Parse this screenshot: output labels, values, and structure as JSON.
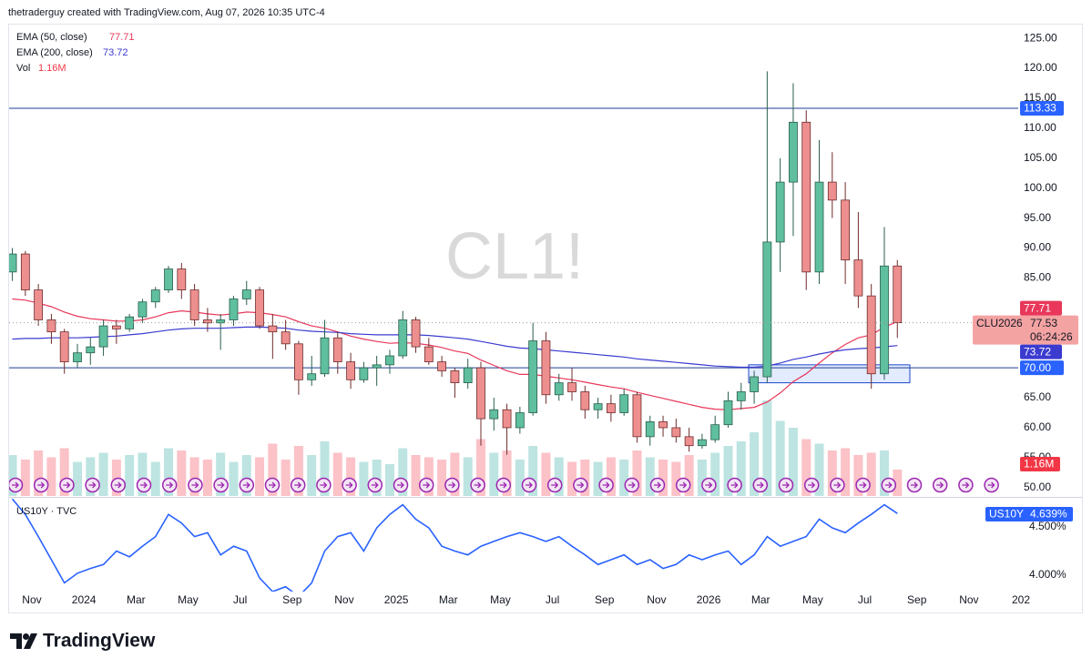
{
  "header": {
    "credit": "thetraderguy created with TradingView.com, Aug 07, 2026 10:35 UTC-4"
  },
  "footer": {
    "brand": "TradingView"
  },
  "chart_data": [
    {
      "type": "candlestick",
      "watermark": "CL1!",
      "symbol": "CLU2026",
      "countdown": "06:24:26",
      "categories": [
        null,
        null,
        "Nov",
        null,
        null,
        null,
        "2024",
        null,
        null,
        null,
        "Mar",
        null,
        null,
        null,
        "May",
        null,
        null,
        null,
        "Jul",
        null,
        null,
        null,
        "Sep",
        null,
        null,
        null,
        "Nov",
        null,
        null,
        null,
        "2025",
        null,
        null,
        null,
        "Mar",
        null,
        null,
        null,
        "May",
        null,
        null,
        null,
        "Jul",
        null,
        null,
        null,
        "Sep",
        null,
        null,
        null,
        "Nov",
        null,
        null,
        null,
        "2026",
        null,
        null,
        null,
        "Mar",
        null,
        null,
        null,
        "May",
        null,
        null,
        null,
        "Jul",
        null,
        null,
        null,
        "Sep",
        null,
        null,
        null,
        "Nov",
        null,
        null,
        null,
        "202"
      ],
      "open": [
        86,
        89,
        83,
        78,
        76,
        71,
        72.5,
        73.5,
        77,
        76.5,
        78.5,
        81,
        83,
        86.5,
        83,
        78,
        77.5,
        78,
        81.5,
        83,
        77,
        76,
        74,
        68,
        69,
        75,
        71,
        68,
        70,
        70.5,
        72,
        78,
        73.5,
        71,
        69.5,
        67.5,
        70,
        61.5,
        63,
        60,
        62.5,
        74.5,
        65.5,
        67.5,
        66,
        63,
        64,
        62.5,
        65.5,
        58.5,
        61,
        60,
        58.5,
        57,
        58,
        60.5,
        64.5,
        66,
        68.5,
        91,
        101,
        111,
        86,
        101,
        98,
        88,
        82,
        69,
        87,
        null,
        null,
        null,
        null,
        null,
        null,
        null,
        null,
        null,
        null
      ],
      "high": [
        90,
        89.5,
        84,
        79,
        76.5,
        74,
        75,
        78,
        78,
        79,
        81.5,
        83.5,
        87,
        87.5,
        84,
        80,
        79,
        82,
        84.5,
        83.5,
        79,
        78,
        74.5,
        72,
        78,
        76,
        72.5,
        71,
        72,
        73,
        79.5,
        78.5,
        75,
        72,
        70,
        71.5,
        71,
        65,
        64,
        63.5,
        77.5,
        76,
        69,
        70,
        67,
        65,
        65.5,
        66.5,
        66,
        62,
        62,
        61.5,
        60,
        59,
        62,
        66,
        67.5,
        69.5,
        119.5,
        105,
        117.5,
        113,
        108,
        106,
        101,
        96,
        84,
        93.5,
        88,
        null,
        null,
        null,
        null,
        null,
        null,
        null,
        null,
        null,
        null
      ],
      "low": [
        84.5,
        82,
        77,
        74,
        69,
        70,
        70.5,
        72,
        74,
        76,
        77.5,
        80,
        82.5,
        81.5,
        77,
        76,
        73,
        77,
        80.5,
        76.5,
        71.5,
        73,
        65.5,
        67,
        68.5,
        69,
        66.5,
        67.5,
        67,
        69,
        71.5,
        72.5,
        70.5,
        68.5,
        65,
        66.5,
        57,
        59.5,
        55.5,
        59,
        62,
        64,
        64.5,
        64.5,
        61.5,
        61.5,
        61,
        62,
        57.5,
        57,
        58.5,
        57.5,
        56,
        56.5,
        57.5,
        60,
        63,
        64,
        67.5,
        86,
        92,
        83,
        84,
        95,
        84,
        80,
        66.5,
        68,
        75,
        null,
        null,
        null,
        null,
        null,
        null,
        null,
        null,
        null,
        null
      ],
      "close": [
        89,
        83,
        78,
        76,
        71,
        72.5,
        73.5,
        77,
        76.5,
        78.5,
        81,
        83,
        86.5,
        83,
        78,
        77.5,
        78,
        81.5,
        83,
        77,
        76,
        74,
        68,
        69,
        75,
        71,
        68,
        70,
        70.5,
        72,
        78,
        73.5,
        71,
        69.5,
        67.5,
        70,
        61.5,
        63,
        60,
        62.5,
        74.5,
        65.5,
        67.5,
        66,
        63,
        64,
        62.5,
        65.5,
        58.5,
        61,
        60,
        58.5,
        57,
        58,
        60.5,
        64.5,
        66,
        68.5,
        91,
        101,
        111,
        86,
        101,
        98,
        88,
        82,
        69,
        87,
        77.53,
        null,
        null,
        null,
        null,
        null,
        null,
        null,
        null,
        null,
        null
      ],
      "up_color": "#5fbf9f",
      "down_color": "#ee8f8f",
      "volume": {
        "name": "Vol",
        "color": "#f23645",
        "values": [
          1.8,
          1.6,
          2.0,
          1.7,
          2.1,
          1.5,
          1.7,
          1.9,
          1.6,
          1.8,
          1.9,
          1.5,
          2.1,
          2.0,
          1.7,
          1.6,
          1.9,
          1.5,
          1.8,
          1.7,
          2.3,
          1.6,
          2.2,
          1.8,
          2.4,
          1.9,
          1.7,
          1.5,
          1.6,
          1.4,
          2.1,
          1.8,
          1.7,
          1.6,
          1.9,
          1.7,
          2.5,
          1.9,
          2.0,
          1.6,
          2.2,
          1.9,
          1.7,
          1.5,
          1.6,
          1.5,
          1.7,
          1.6,
          2.0,
          1.7,
          1.6,
          1.5,
          1.8,
          1.6,
          1.9,
          2.2,
          2.4,
          2.8,
          4.2,
          3.3,
          3.0,
          2.5,
          2.3,
          2.0,
          2.1,
          1.8,
          1.9,
          2.0,
          1.16,
          null,
          null,
          null,
          null,
          null,
          null,
          null,
          null,
          null,
          null
        ],
        "value_labels": [
          null,
          null,
          null,
          null,
          null,
          null,
          null,
          null,
          null,
          null,
          null,
          null,
          null,
          null,
          null,
          null,
          null,
          null,
          null,
          null,
          null,
          null,
          null,
          null,
          null,
          null,
          null,
          null,
          null,
          null,
          null,
          null,
          null,
          null,
          null,
          null,
          null,
          null,
          null,
          null,
          null,
          null,
          null,
          null,
          null,
          null,
          null,
          null,
          null,
          null,
          null,
          null,
          null,
          null,
          null,
          null,
          null,
          null,
          null,
          null,
          null,
          null,
          null,
          null,
          null,
          null,
          null,
          null,
          "1.16M",
          null,
          null,
          null,
          null,
          null,
          null,
          null,
          null,
          null,
          null
        ]
      },
      "series": [
        {
          "name": "EMA (50, close)",
          "color": "#e8375a",
          "values": [
            81.5,
            81.3,
            80.8,
            80.2,
            79.3,
            78.6,
            78.2,
            78,
            77.8,
            77.8,
            78,
            78.5,
            79.2,
            79.5,
            79.3,
            79,
            78.8,
            79,
            79.3,
            79.2,
            78.9,
            78.5,
            77.7,
            77,
            76.6,
            76,
            75.3,
            74.8,
            74.4,
            74.1,
            74.2,
            74.1,
            73.8,
            73.4,
            72.8,
            72.4,
            71.3,
            70.4,
            69.5,
            68.9,
            68.9,
            68.6,
            68.3,
            68,
            67.6,
            67.2,
            66.8,
            66.5,
            65.9,
            65.4,
            64.9,
            64.4,
            63.9,
            63.4,
            63.1,
            63,
            63.2,
            63.4,
            64.3,
            65.8,
            67.7,
            69,
            70.8,
            72.5,
            73.9,
            75,
            75.5,
            76.8,
            77.71,
            null,
            null,
            null,
            null,
            null,
            null,
            null,
            null,
            null,
            null
          ]
        },
        {
          "name": "EMA (200, close)",
          "color": "#3b3bd0",
          "values": [
            74.8,
            74.9,
            74.9,
            75,
            75,
            75,
            75.1,
            75.2,
            75.3,
            75.5,
            75.7,
            76,
            76.3,
            76.5,
            76.6,
            76.6,
            76.6,
            76.7,
            76.8,
            76.8,
            76.7,
            76.6,
            76.3,
            76.1,
            76,
            75.9,
            75.7,
            75.6,
            75.5,
            75.5,
            75.5,
            75.5,
            75.4,
            75.2,
            75,
            74.8,
            74.4,
            74,
            73.6,
            73.3,
            73.2,
            73,
            72.8,
            72.6,
            72.4,
            72.2,
            72,
            71.8,
            71.5,
            71.3,
            71.1,
            70.9,
            70.7,
            70.5,
            70.3,
            70.2,
            70.1,
            70.1,
            70.3,
            70.8,
            71.4,
            71.8,
            72.3,
            72.7,
            73,
            73.2,
            73.3,
            73.5,
            73.72,
            null,
            null,
            null,
            null,
            null,
            null,
            null,
            null,
            null,
            null
          ]
        }
      ],
      "hlines": [
        113.33,
        {
          "value": 70,
          "label": "70.00"
        }
      ],
      "zone": [
        67.5,
        70.5
      ],
      "ylim": [
        48.6,
        127.3
      ],
      "yticks": [
        {
          "value": 50,
          "label": "50.00"
        },
        {
          "value": 55,
          "label": "55.00"
        },
        {
          "value": 60,
          "label": "60.00"
        },
        {
          "value": 65,
          "label": "65.00"
        },
        {
          "value": 70,
          "label": "70.00"
        },
        {
          "value": 75,
          "label": "75.00"
        },
        {
          "value": 80,
          "label": "80.00"
        },
        {
          "value": 85,
          "label": "85.00"
        },
        {
          "value": 90,
          "label": "90.00"
        },
        {
          "value": 95,
          "label": "95.00"
        },
        {
          "value": 100,
          "label": "100.00"
        },
        {
          "value": 105,
          "label": "105.00"
        },
        {
          "value": 110,
          "label": "110.00"
        },
        {
          "value": 115,
          "label": "115.00"
        },
        {
          "value": 120,
          "label": "120.00"
        },
        {
          "value": 125,
          "label": "125.00"
        }
      ],
      "grid": false
    },
    {
      "type": "line",
      "title": "US10Y · TVC",
      "series": [
        {
          "name": "US10Y",
          "color": "#2962ff",
          "values": [
            4.79,
            4.63,
            4.4,
            4.16,
            3.92,
            4.02,
            4.07,
            4.11,
            4.25,
            4.19,
            4.3,
            4.4,
            4.63,
            4.54,
            4.4,
            4.44,
            4.21,
            4.3,
            4.25,
            3.97,
            3.83,
            3.88,
            3.78,
            3.92,
            4.25,
            4.4,
            4.44,
            4.25,
            4.49,
            4.63,
            4.73,
            4.58,
            4.49,
            4.3,
            4.25,
            4.21,
            4.3,
            4.35,
            4.4,
            4.44,
            4.4,
            4.35,
            4.4,
            4.3,
            4.21,
            4.11,
            4.16,
            4.21,
            4.11,
            4.16,
            4.07,
            4.11,
            4.21,
            4.16,
            4.21,
            4.25,
            4.11,
            4.21,
            4.4,
            4.3,
            4.35,
            4.4,
            4.58,
            4.49,
            4.44,
            4.54,
            4.63,
            4.73,
            4.639,
            null,
            null,
            null,
            null,
            null,
            null,
            null,
            null,
            null,
            null
          ],
          "value_labels": [
            null,
            null,
            null,
            null,
            null,
            null,
            null,
            null,
            null,
            null,
            null,
            null,
            null,
            null,
            null,
            null,
            null,
            null,
            null,
            null,
            null,
            null,
            null,
            null,
            null,
            null,
            null,
            null,
            null,
            null,
            null,
            null,
            null,
            null,
            null,
            null,
            null,
            null,
            null,
            null,
            null,
            null,
            null,
            null,
            null,
            null,
            null,
            null,
            null,
            null,
            null,
            null,
            null,
            null,
            null,
            null,
            null,
            null,
            null,
            null,
            null,
            null,
            null,
            null,
            null,
            null,
            null,
            null,
            "4.639%",
            null,
            null,
            null,
            null,
            null,
            null,
            null,
            null,
            null,
            null
          ]
        }
      ],
      "ylim": [
        3.83,
        4.792
      ],
      "yticks": [
        {
          "value": 4.5,
          "label": "4.500%"
        },
        {
          "value": 4,
          "label": "4.000%"
        }
      ],
      "grid": false
    }
  ]
}
